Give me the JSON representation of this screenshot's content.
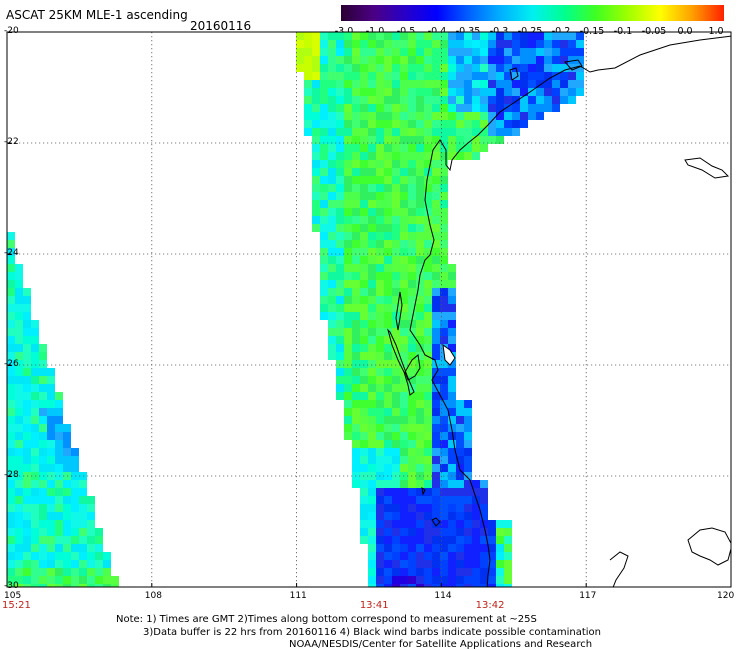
{
  "header": {
    "title": "ASCAT 25KM MLE-1 ascending",
    "date": "20160116"
  },
  "colorbar": {
    "labels": [
      "-3.0",
      "-1.0",
      "-0.5",
      "-0.4",
      "-0.35",
      "-0.3",
      "-0.25",
      "-0.2",
      "-0.15",
      "-0.1",
      "-0.05",
      "0.0",
      "1.0"
    ],
    "colors": [
      "#2a0033",
      "#4b0082",
      "#2800c8",
      "#0000ff",
      "#0060ff",
      "#00b0ff",
      "#00f0f0",
      "#00ff90",
      "#40ff20",
      "#a0ff00",
      "#ffff00",
      "#ffa000",
      "#ff2000"
    ]
  },
  "map_data": {
    "lon_range": [
      105,
      120
    ],
    "lat_range": [
      -30,
      -20
    ],
    "lon_ticks": [
      "105",
      "108",
      "111",
      "114",
      "117",
      "120"
    ],
    "lat_ticks": [
      "-20",
      "-22",
      "-24",
      "-26",
      "-28",
      "-30"
    ],
    "grid": true,
    "coastline_color": "#000000",
    "time_labels": [
      {
        "text": "15:21",
        "lon": 105.2
      },
      {
        "text": "13:41",
        "lon": 112.6
      },
      {
        "text": "13:42",
        "lon": 115.0
      }
    ]
  },
  "notes": {
    "line1": "Note: 1) Times are GMT 2)Times along bottom correspond to measurement at ~25S",
    "line2": "3)Data buffer is 22 hrs from 20160116 4) Black wind barbs indicate possible contamination",
    "line3": "NOAA/NESDIS/Center for Satellite Applications and Research"
  }
}
